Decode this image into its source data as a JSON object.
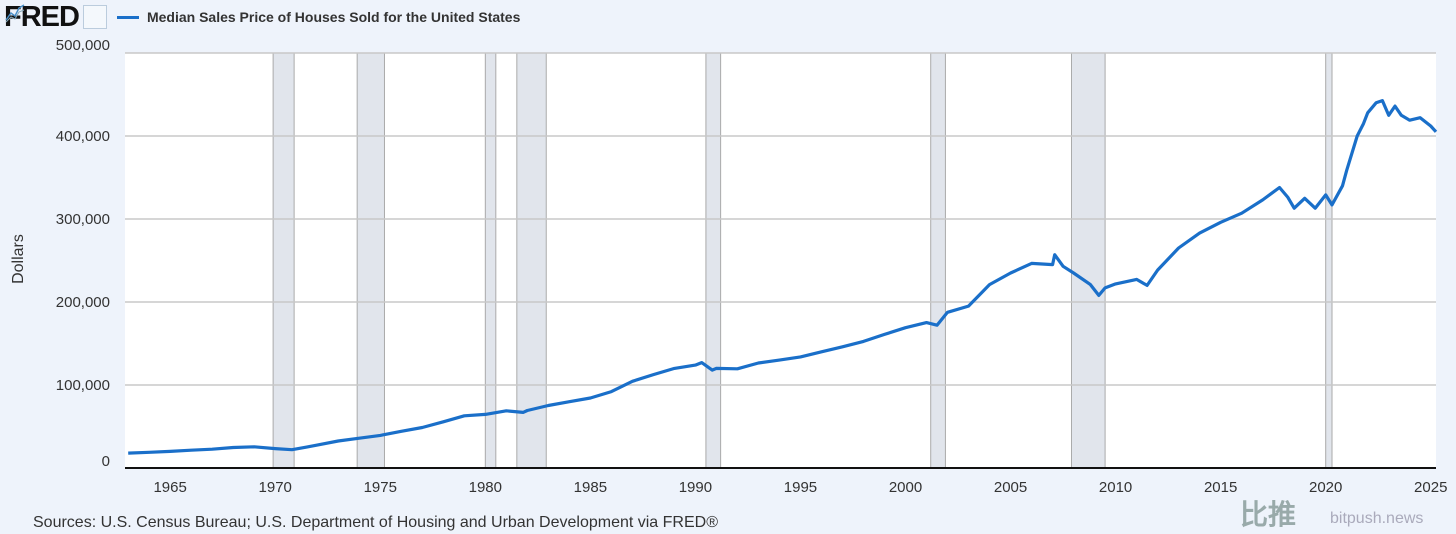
{
  "header": {
    "logo": "FRED",
    "legend": "Median Sales Price of Houses Sold for the United States"
  },
  "footer": {
    "sources": "Sources: U.S. Census Bureau; U.S. Department of Housing and Urban Development via FRED®"
  },
  "watermark": {
    "name": "比推",
    "site": "bitpush.news"
  },
  "colors": {
    "line": "#1a6fc9",
    "recession": "#e1e5ec",
    "grid": "#c8c8c8",
    "background": "#eef3fb"
  },
  "chart_data": {
    "type": "line",
    "title": "Median Sales Price of Houses Sold for the United States",
    "xlabel": "",
    "ylabel": "Dollars",
    "xlim": [
      1962.85,
      2025.25
    ],
    "ylim": [
      0,
      500000
    ],
    "yticks": [
      0,
      100000,
      200000,
      300000,
      400000,
      500000
    ],
    "ytick_labels": [
      "0",
      "100,000",
      "200,000",
      "300,000",
      "400,000",
      "500,000"
    ],
    "xticks": [
      1965,
      1970,
      1975,
      1980,
      1985,
      1990,
      1995,
      2000,
      2005,
      2010,
      2015,
      2020,
      2025
    ],
    "xtick_labels": [
      "1965",
      "1970",
      "1975",
      "1980",
      "1985",
      "1990",
      "1995",
      "2000",
      "2005",
      "2010",
      "2015",
      "2020",
      "2025"
    ],
    "recessions": [
      [
        1969.9,
        1970.9
      ],
      [
        1973.9,
        1975.2
      ],
      [
        1980.0,
        1980.5
      ],
      [
        1981.5,
        1982.9
      ],
      [
        1990.5,
        1991.2
      ],
      [
        2001.2,
        2001.9
      ],
      [
        2007.9,
        2009.5
      ],
      [
        2020.0,
        2020.3
      ]
    ],
    "series": [
      {
        "name": "Median Sales Price of Houses Sold for the United States",
        "x": [
          1963,
          1964,
          1965,
          1966,
          1967,
          1968,
          1969,
          1970,
          1970.8,
          1971.5,
          1972,
          1973,
          1974,
          1975,
          1976,
          1977,
          1978,
          1979,
          1980,
          1981,
          1981.8,
          1982,
          1983,
          1984,
          1985,
          1986,
          1987,
          1988,
          1989,
          1990,
          1990.3,
          1990.8,
          1991,
          1992,
          1993,
          1994,
          1995,
          1996,
          1997,
          1998,
          1999,
          2000,
          2001,
          2001.5,
          2002,
          2003,
          2004,
          2005,
          2006,
          2007,
          2007.1,
          2007.5,
          2008,
          2008.8,
          2009.2,
          2009.5,
          2010,
          2011,
          2011.5,
          2012,
          2013,
          2014,
          2015,
          2016,
          2017,
          2017.8,
          2018.2,
          2018.5,
          2019,
          2019.5,
          2020,
          2020.3,
          2020.8,
          2021,
          2021.5,
          2021.8,
          2022,
          2022.4,
          2022.7,
          2023,
          2023.3,
          2023.6,
          2024,
          2024.5,
          2025,
          2025.25
        ],
        "y": [
          18000,
          18900,
          20000,
          21400,
          22700,
          24700,
          25600,
          23400,
          22000,
          25200,
          27600,
          32500,
          35900,
          39300,
          44200,
          48800,
          55700,
          62900,
          64600,
          68900,
          67000,
          69300,
          75300,
          79900,
          84300,
          92000,
          104500,
          112500,
          120000,
          124000,
          127000,
          118000,
          120000,
          119500,
          126500,
          130000,
          133900,
          140000,
          146000,
          152500,
          161000,
          169000,
          175200,
          172000,
          187600,
          195000,
          221000,
          235000,
          246500,
          245000,
          257000,
          243000,
          235000,
          221000,
          208000,
          217000,
          221800,
          227200,
          220000,
          238400,
          265000,
          283000,
          296000,
          307000,
          323000,
          337900,
          326000,
          313000,
          325000,
          313000,
          329000,
          317000,
          340000,
          358700,
          400000,
          415000,
          428000,
          440000,
          442600,
          425000,
          436000,
          425000,
          419000,
          422000,
          412000,
          405000
        ]
      }
    ]
  }
}
